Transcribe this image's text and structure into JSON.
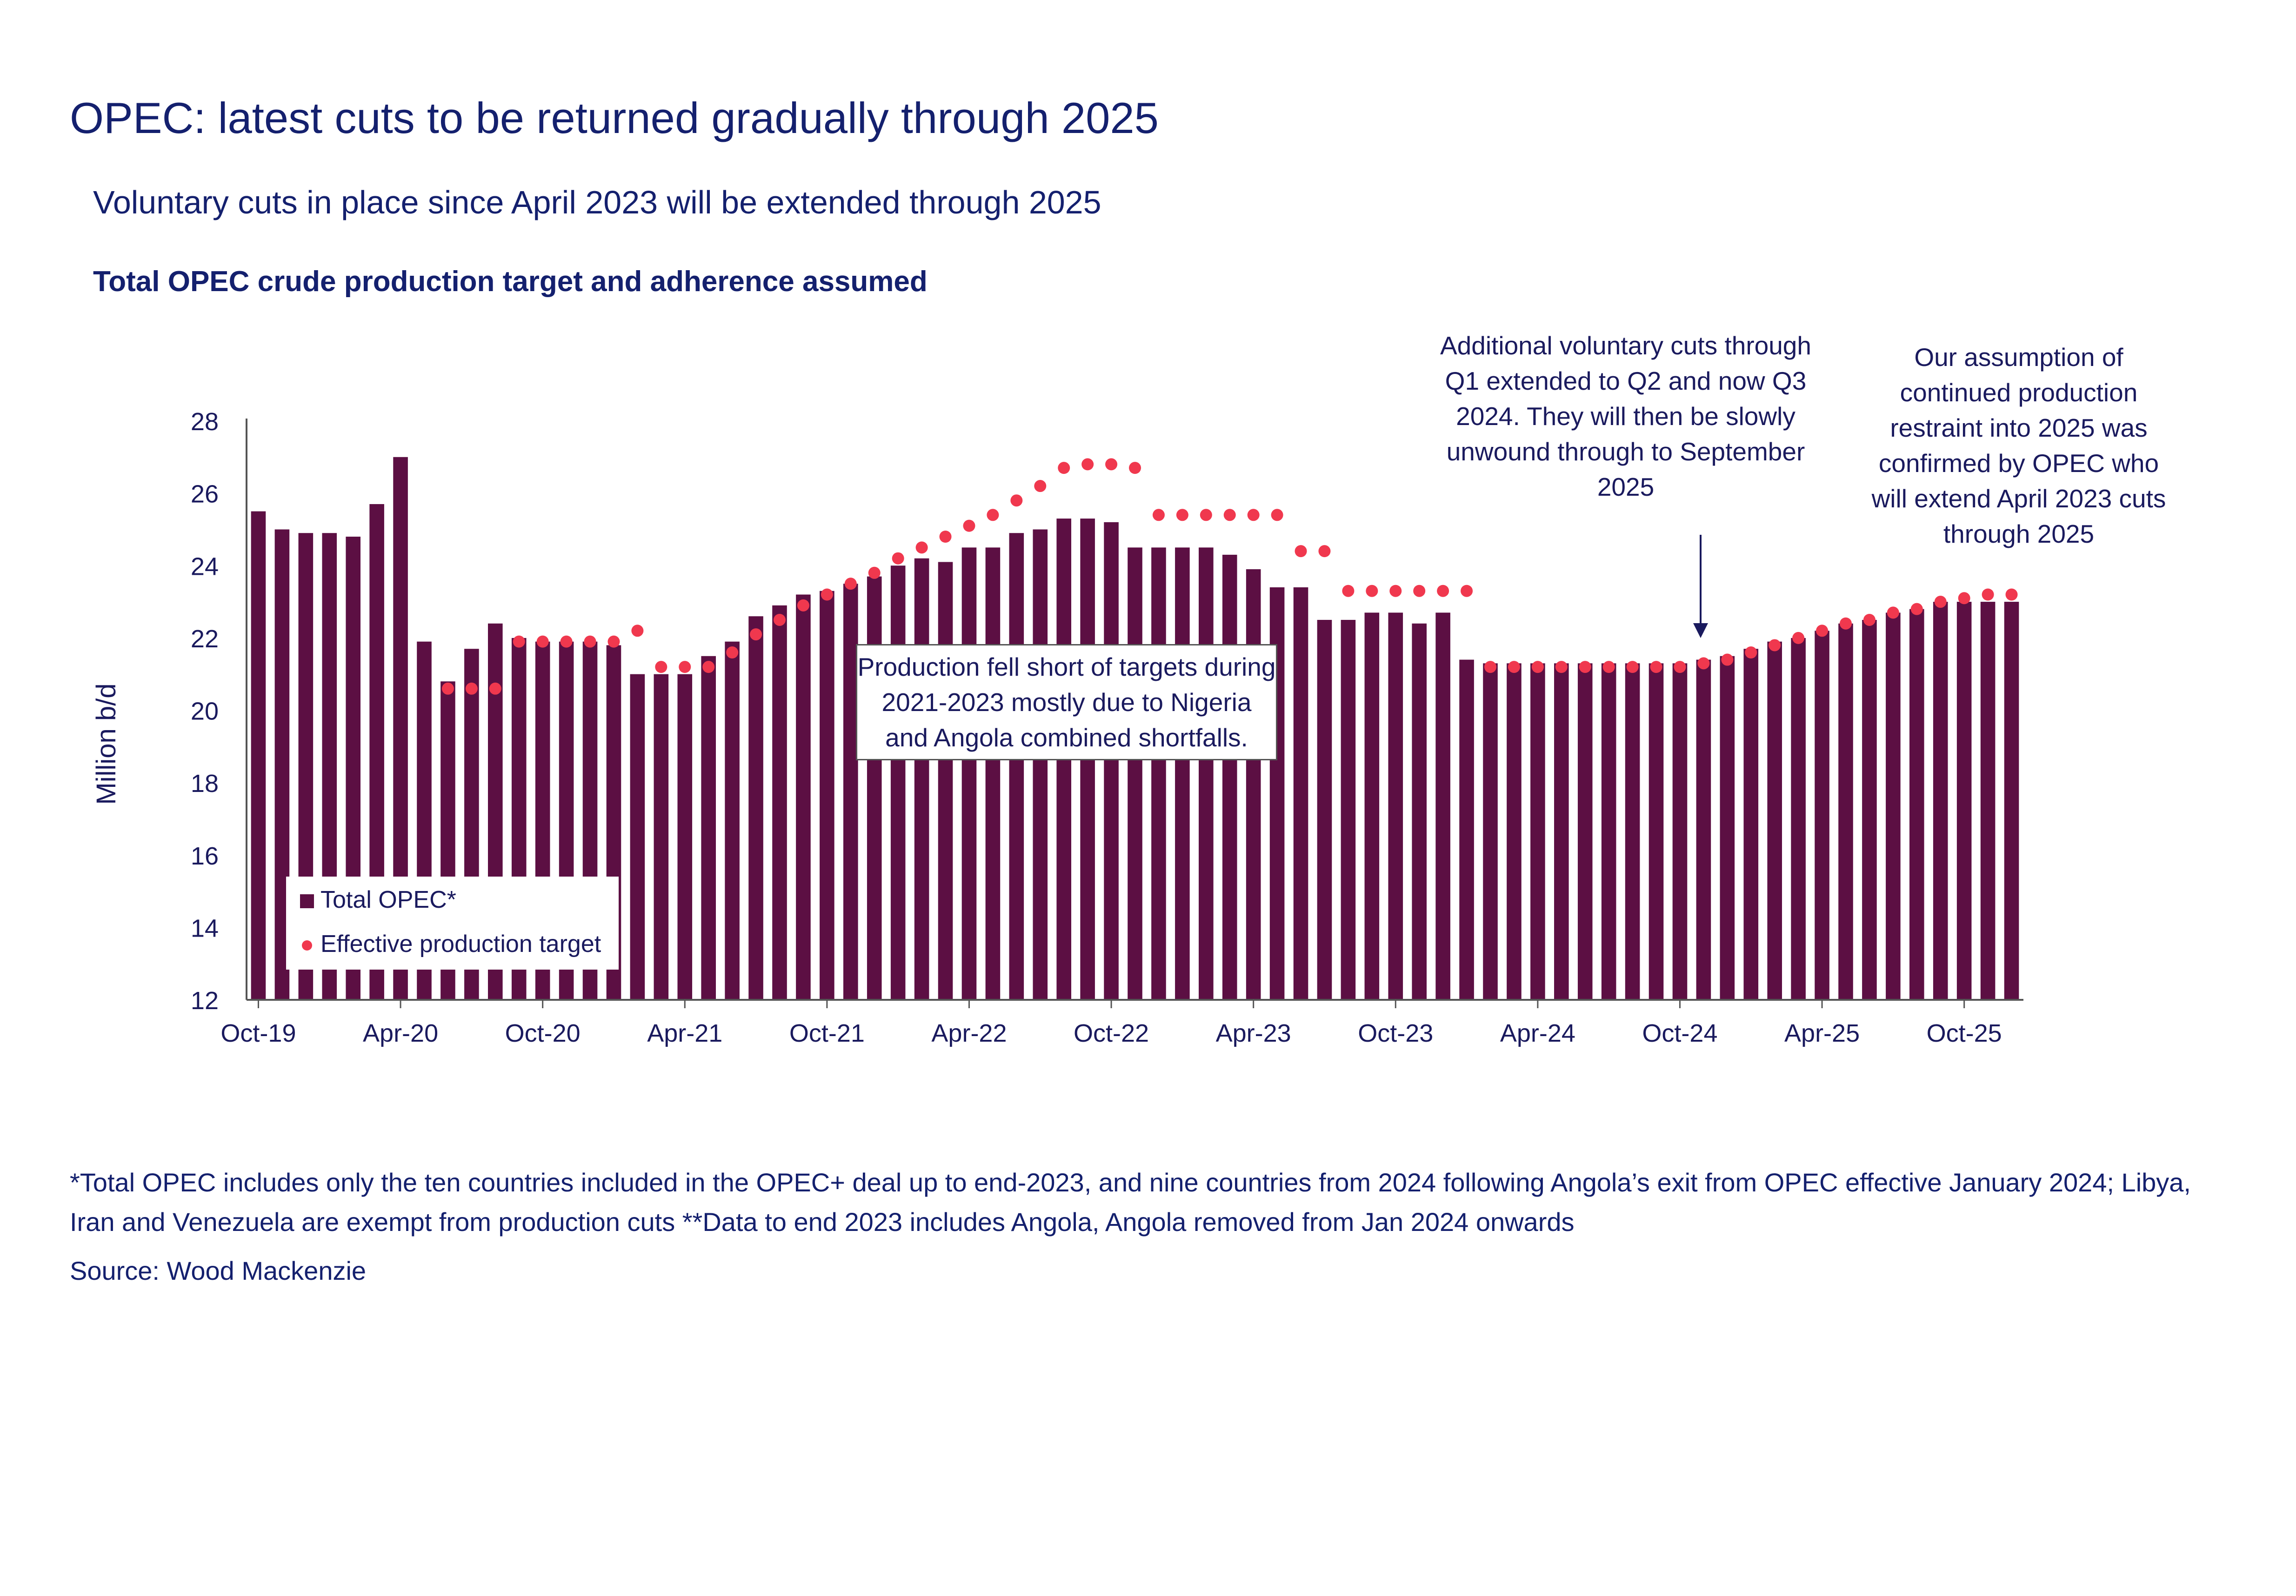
{
  "title": "OPEC: latest cuts to be returned gradually through 2025",
  "subtitle": "Voluntary cuts in place since April 2023 will be extended through 2025",
  "chart_heading": "Total OPEC crude production target and adherence assumed",
  "footnote": "*Total OPEC includes only the ten countries included in the OPEC+ deal up to end-2023, and nine countries from 2024 following Angola’s exit from OPEC effective January 2024; Libya, Iran and Venezuela are exempt from production cuts **Data to end 2023 includes Angola, Angola removed from Jan 2024 onwards",
  "source": "Source: Wood Mackenzie",
  "annotations": {
    "voluntary_cuts": "Additional voluntary cuts through Q1 extended to Q2 and now Q3 2024. They will then be slowly unwound through to September 2025",
    "assumption": "Our assumption of continued production restraint into 2025 was confirmed by OPEC who will extend April 2023 cuts through 2025",
    "shortfall": "Production fell short of targets during 2021-2023 mostly due to Nigeria and Angola combined shortfalls."
  },
  "colors": {
    "bar": "#5c0f43",
    "target": "#f0384e",
    "text": "#14206e",
    "axis": "#1a1a5e"
  },
  "chart_data": {
    "type": "bar",
    "title": "Total OPEC crude production target and adherence assumed",
    "ylabel": "Million b/d",
    "xlabel": "",
    "ylim": [
      12,
      28
    ],
    "yticks": [
      12,
      14,
      16,
      18,
      20,
      22,
      24,
      26,
      28
    ],
    "start_month": "Oct-19",
    "months_count": 75,
    "xtick_labels": [
      "Oct-19",
      "Apr-20",
      "Oct-20",
      "Apr-21",
      "Oct-21",
      "Apr-22",
      "Oct-22",
      "Apr-23",
      "Oct-23",
      "Apr-24",
      "Oct-24",
      "Apr-25",
      "Oct-25"
    ],
    "xtick_every": 6,
    "legend_location": "bottom-left",
    "series": [
      {
        "name": "Total OPEC*",
        "kind": "bar",
        "values": [
          25.5,
          25.0,
          24.9,
          24.9,
          24.8,
          25.7,
          27.0,
          21.9,
          20.8,
          21.7,
          22.4,
          22.0,
          21.9,
          21.9,
          21.9,
          21.8,
          21.0,
          21.0,
          21.0,
          21.5,
          21.9,
          22.6,
          22.9,
          23.2,
          23.3,
          23.5,
          23.7,
          24.0,
          24.2,
          24.1,
          24.5,
          24.5,
          24.9,
          25.0,
          25.3,
          25.3,
          25.2,
          24.5,
          24.5,
          24.5,
          24.5,
          24.3,
          23.9,
          23.4,
          23.4,
          22.5,
          22.5,
          22.7,
          22.7,
          22.4,
          22.7,
          21.4,
          21.3,
          21.3,
          21.3,
          21.3,
          21.3,
          21.3,
          21.3,
          21.3,
          21.3,
          21.4,
          21.5,
          21.7,
          21.9,
          22.0,
          22.2,
          22.4,
          22.5,
          22.7,
          22.8,
          23.0,
          23.0,
          23.0,
          23.0
        ]
      },
      {
        "name": "Effective production target",
        "kind": "scatter",
        "values": [
          null,
          null,
          null,
          null,
          null,
          null,
          null,
          null,
          20.6,
          20.6,
          20.6,
          21.9,
          21.9,
          21.9,
          21.9,
          21.9,
          22.2,
          21.2,
          21.2,
          21.2,
          21.6,
          22.1,
          22.5,
          22.9,
          23.2,
          23.5,
          23.8,
          24.2,
          24.5,
          24.8,
          25.1,
          25.4,
          25.8,
          26.2,
          26.7,
          26.8,
          26.8,
          26.7,
          25.4,
          25.4,
          25.4,
          25.4,
          25.4,
          25.4,
          24.4,
          24.4,
          23.3,
          23.3,
          23.3,
          23.3,
          23.3,
          23.3,
          21.2,
          21.2,
          21.2,
          21.2,
          21.2,
          21.2,
          21.2,
          21.2,
          21.2,
          21.3,
          21.4,
          21.6,
          21.8,
          22.0,
          22.2,
          22.4,
          22.5,
          22.7,
          22.8,
          23.0,
          23.1,
          23.2,
          23.2
        ]
      }
    ]
  }
}
